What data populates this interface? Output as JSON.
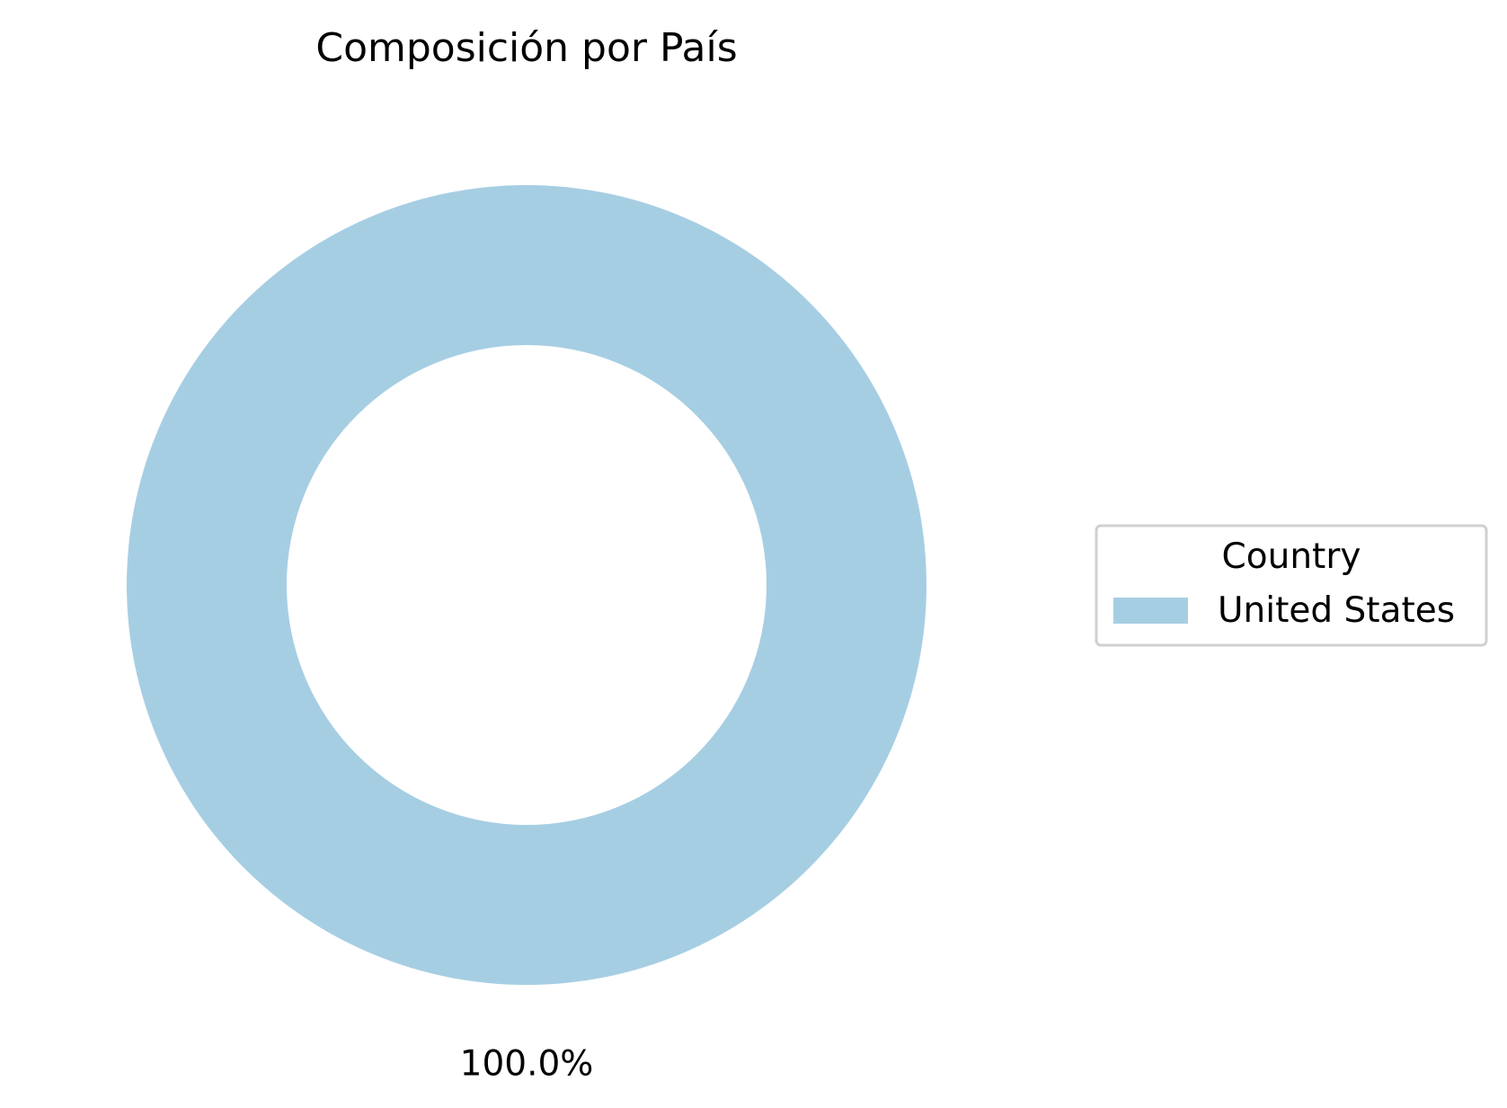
{
  "chart_data": {
    "type": "pie",
    "title": "Composición por País",
    "categories": [
      "United States"
    ],
    "values": [
      100.0
    ],
    "labels": [
      "100.0%"
    ],
    "colors": [
      "#a6cee3"
    ],
    "donut": true,
    "legend": {
      "title": "Country",
      "placement": "right",
      "entries": [
        "United States"
      ]
    }
  }
}
